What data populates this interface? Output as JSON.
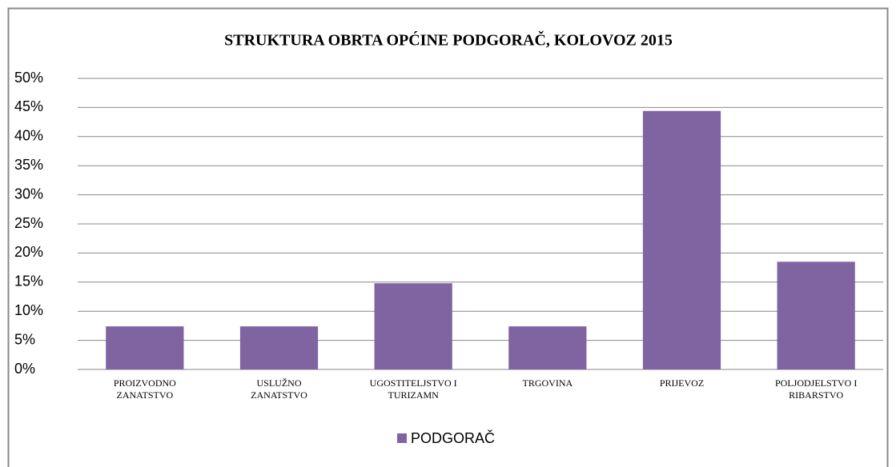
{
  "chart_data": {
    "type": "bar",
    "title": "STRUKTURA OBRTA OPĆINE PODGORAČ, KOLOVOZ 2015",
    "categories": [
      [
        "PROIZVODNO",
        "ZANATSTVO"
      ],
      [
        "USLUŽNO",
        "ZANATSTVO"
      ],
      [
        "UGOSTITELJSTVO I",
        "TURIZAMN"
      ],
      [
        "TRGOVINA"
      ],
      [
        "PRIJEVOZ"
      ],
      [
        "POLJODJELSTVO I",
        "RIBARSTVO"
      ]
    ],
    "series": [
      {
        "name": "PODGORAČ",
        "color": "#8064a2",
        "values": [
          7.4,
          7.4,
          14.8,
          7.4,
          44.4,
          18.5
        ]
      }
    ],
    "ylim": [
      0,
      50
    ],
    "yticks": [
      {
        "value": 0,
        "label": "0%"
      },
      {
        "value": 5,
        "label": "5%"
      },
      {
        "value": 10,
        "label": "10%"
      },
      {
        "value": 15,
        "label": "15%"
      },
      {
        "value": 20,
        "label": "20%"
      },
      {
        "value": 25,
        "label": "25%"
      },
      {
        "value": 30,
        "label": "30%"
      },
      {
        "value": 35,
        "label": "35%"
      },
      {
        "value": 40,
        "label": "40%"
      },
      {
        "value": 45,
        "label": "45%"
      },
      {
        "value": 50,
        "label": "50%"
      }
    ],
    "grid": true,
    "legend": "bottom"
  }
}
